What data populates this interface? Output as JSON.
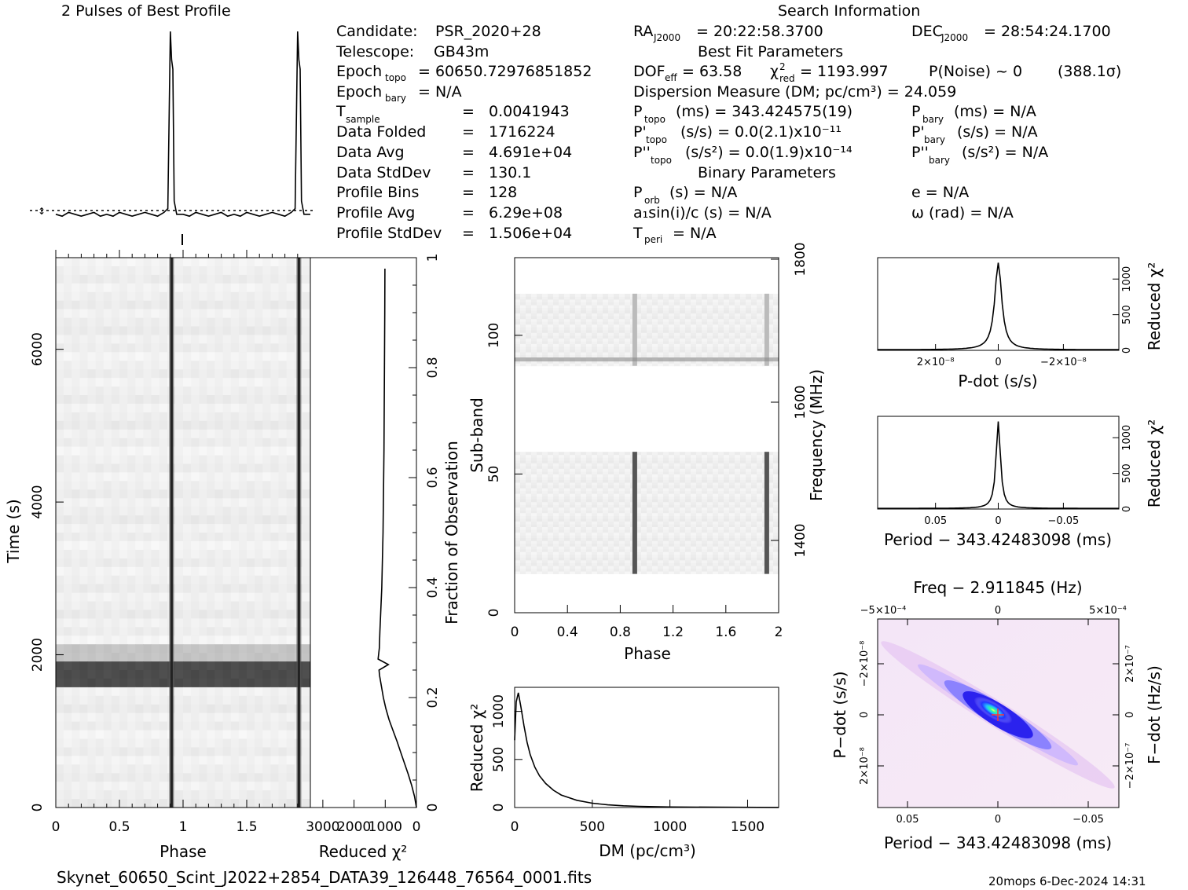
{
  "header": {
    "profile_title": "2 Pulses of Best Profile",
    "search_title": "Search Information",
    "best_fit_title": "Best Fit Parameters",
    "binary_title": "Binary Parameters"
  },
  "info": {
    "candidate_label": "Candidate:",
    "candidate": "PSR_2020+28",
    "telescope_label": "Telescope:",
    "telescope": "GB43m",
    "epoch_topo_label": "Epoch",
    "epoch_topo_sub": "topo",
    "epoch_topo": "= 60650.72976851852",
    "epoch_bary_label": "Epoch",
    "epoch_bary_sub": "bary",
    "epoch_bary": "= N/A",
    "t_sample_label": "T",
    "t_sample_sub": "sample",
    "t_sample": "0.0041943",
    "data_folded_label": "Data Folded",
    "data_folded": "1716224",
    "data_avg_label": "Data Avg",
    "data_avg": "4.691e+04",
    "data_stddev_label": "Data StdDev",
    "data_stddev": "130.1",
    "profile_bins_label": "Profile Bins",
    "profile_bins": "128",
    "profile_avg_label": "Profile Avg",
    "profile_avg": "6.29e+08",
    "profile_stddev_label": "Profile StdDev",
    "profile_stddev": "1.506e+04",
    "eq": "="
  },
  "search": {
    "ra": "= 20:22:58.3700",
    "dec": "= 28:54:24.1700",
    "dof": "= 63.58",
    "chi2red": "= 1193.997",
    "pnoise": "P(Noise) ~ 0",
    "sigma": "(388.1σ)",
    "dm": "Dispersion Measure (DM; pc/cm³) = 24.059",
    "p_topo": "(ms) =  343.424575(19)",
    "p_bary": "(ms) = N/A",
    "pd_topo": "(s/s) = 0.0(2.1)x10⁻¹¹",
    "pd_bary": "(s/s) = N/A",
    "pdd_topo": "(s/s²) = 0.0(1.9)x10⁻¹⁴",
    "pdd_bary": "(s/s²) = N/A",
    "p_orb": "(s) = N/A",
    "e": "e = N/A",
    "a1": "a₁sin(i)/c (s) = N/A",
    "omega": "ω (rad) = N/A",
    "t_peri": "= N/A"
  },
  "footer": {
    "filename": "Skynet_60650_Scint_J2022+2854_DATA39_126448_76564_0001.fits",
    "stamp": "20mops   6-Dec-2024 14:31"
  },
  "chart_data": [
    {
      "type": "line",
      "name": "best profile",
      "x": [
        0,
        0.05,
        0.1,
        0.15,
        0.2,
        0.25,
        0.3,
        0.35,
        0.4,
        0.45,
        0.5,
        0.55,
        0.6,
        0.65,
        0.7,
        0.75,
        0.8,
        0.85,
        0.88,
        0.9,
        0.91,
        0.92,
        0.93,
        0.95,
        1.0,
        1.05,
        1.1,
        1.15,
        1.2,
        1.25,
        1.3,
        1.35,
        1.4,
        1.45,
        1.5,
        1.55,
        1.6,
        1.65,
        1.7,
        1.75,
        1.8,
        1.85,
        1.88,
        1.9,
        1.91,
        1.92,
        1.93,
        1.95,
        2.0
      ],
      "y": [
        0.03,
        0.02,
        0.04,
        0.03,
        0.02,
        0.03,
        0.04,
        0.02,
        0.03,
        0.02,
        0.04,
        0.03,
        0.02,
        0.03,
        0.04,
        0.03,
        0.02,
        0.04,
        0.06,
        1.0,
        0.85,
        0.8,
        0.1,
        0.03,
        0.03,
        0.02,
        0.04,
        0.03,
        0.02,
        0.03,
        0.04,
        0.02,
        0.03,
        0.02,
        0.04,
        0.03,
        0.02,
        0.03,
        0.04,
        0.03,
        0.02,
        0.04,
        0.06,
        1.0,
        0.85,
        0.8,
        0.1,
        0.03,
        0.03
      ]
    },
    {
      "type": "heatmap",
      "name": "time vs phase",
      "xlabel": "Phase",
      "ylabel": "Time (s)",
      "x_ticks": [
        "0",
        "0.5",
        "1",
        "1.5"
      ],
      "y_ticks": [
        "0",
        "2000",
        "4000",
        "6000"
      ],
      "xlim": [
        0,
        2
      ],
      "ylim": [
        0,
        7200
      ],
      "pulse_phase": [
        0.91,
        1.91
      ]
    },
    {
      "type": "line",
      "name": "reduced chi2 vs fraction",
      "xlabel": "Reduced χ²",
      "ylabel": "Fraction of Observation",
      "x_ticks": [
        "3000",
        "2000",
        "1000",
        "0"
      ],
      "y_ticks": [
        "0",
        "0.2",
        "0.4",
        "0.6",
        "0.8",
        "1"
      ],
      "chi2": [
        0,
        60,
        150,
        260,
        380,
        500,
        620,
        750,
        880,
        980,
        1060,
        1120,
        1180,
        1200,
        900,
        1230,
        1190,
        1170,
        1140,
        1110,
        1090,
        1070,
        1060,
        1050,
        1040,
        1035,
        1030,
        1025,
        1020,
        1015,
        1010
      ],
      "frac": [
        0,
        0.02,
        0.04,
        0.06,
        0.08,
        0.1,
        0.12,
        0.14,
        0.16,
        0.18,
        0.2,
        0.22,
        0.24,
        0.25,
        0.26,
        0.27,
        0.29,
        0.32,
        0.36,
        0.4,
        0.45,
        0.5,
        0.55,
        0.6,
        0.65,
        0.7,
        0.75,
        0.8,
        0.85,
        0.9,
        0.98
      ]
    },
    {
      "type": "heatmap",
      "name": "sub-band vs phase",
      "xlabel": "Phase",
      "ylabel": "Sub-band",
      "y2label": "Frequency (MHz)",
      "x_ticks": [
        "0",
        "0.4",
        "0.8",
        "1.2",
        "1.6",
        "2"
      ],
      "y_ticks": [
        "0",
        "50",
        "100"
      ],
      "y2_ticks": [
        "1400",
        "1600",
        "1800"
      ],
      "xlim": [
        0,
        2
      ],
      "ylim": [
        0,
        128
      ],
      "bands_active": [
        [
          14,
          58
        ],
        [
          89,
          115
        ]
      ]
    },
    {
      "type": "line",
      "name": "dm search",
      "xlabel": "DM (pc/cm³)",
      "ylabel": "Reduced χ²",
      "x_ticks": [
        "0",
        "500",
        "1000",
        "1500"
      ],
      "y_ticks": [
        "0",
        "500",
        "1000"
      ],
      "xlim": [
        0,
        1700
      ],
      "ylim": [
        0,
        1250
      ],
      "x": [
        0,
        10,
        24,
        40,
        60,
        80,
        100,
        130,
        160,
        200,
        250,
        300,
        400,
        500,
        600,
        700,
        800,
        1000,
        1300,
        1700
      ],
      "y": [
        700,
        1100,
        1194,
        1050,
        850,
        680,
        550,
        420,
        330,
        250,
        180,
        130,
        75,
        45,
        28,
        18,
        12,
        6,
        3,
        1
      ]
    },
    {
      "type": "line",
      "name": "pdot search",
      "xlabel": "P-dot (s/s)",
      "ylabel": "Reduced χ²",
      "x_ticks": [
        "2×10⁻⁸",
        "0",
        "−2×10⁻⁸"
      ],
      "y_ticks": [
        "0",
        "500",
        "1000"
      ],
      "ylim": [
        0,
        1300
      ]
    },
    {
      "type": "line",
      "name": "period search",
      "xlabel": "Period − 343.42483098 (ms)",
      "ylabel": "Reduced χ²",
      "x_ticks": [
        "0.05",
        "0",
        "−0.05"
      ],
      "y_ticks": [
        "0",
        "500",
        "1000"
      ],
      "ylim": [
        0,
        1300
      ]
    },
    {
      "type": "heatmap",
      "name": "p-pdot plane",
      "title": "Freq − 2.911845 (Hz)",
      "xlabel": "Period − 343.42483098 (ms)",
      "ylabel": "P−dot (s/s)",
      "y2label": "F−dot (Hz/s)",
      "x_ticks": [
        "0.05",
        "0",
        "−0.05"
      ],
      "x2_ticks": [
        "−5×10⁻⁴",
        "0",
        "5×10⁻⁴"
      ],
      "y_ticks": [
        "−2×10⁻⁸",
        "0",
        "2×10⁻⁸"
      ],
      "y2_ticks": [
        "2×10⁻⁷",
        "0",
        "−2×10⁻⁷"
      ]
    }
  ]
}
